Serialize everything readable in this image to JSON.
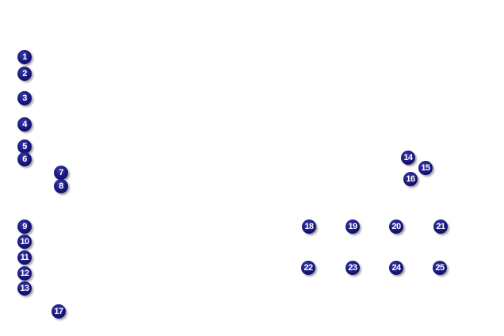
{
  "callouts": [
    "1",
    "2",
    "3",
    "4",
    "5",
    "6",
    "7",
    "8",
    "9",
    "10",
    "11",
    "12",
    "13",
    "14",
    "15",
    "16",
    "17",
    "18",
    "19",
    "20",
    "21",
    "22",
    "23",
    "24",
    "25"
  ],
  "colors": {
    "marker": "#15157a",
    "text": "#ffffff"
  }
}
